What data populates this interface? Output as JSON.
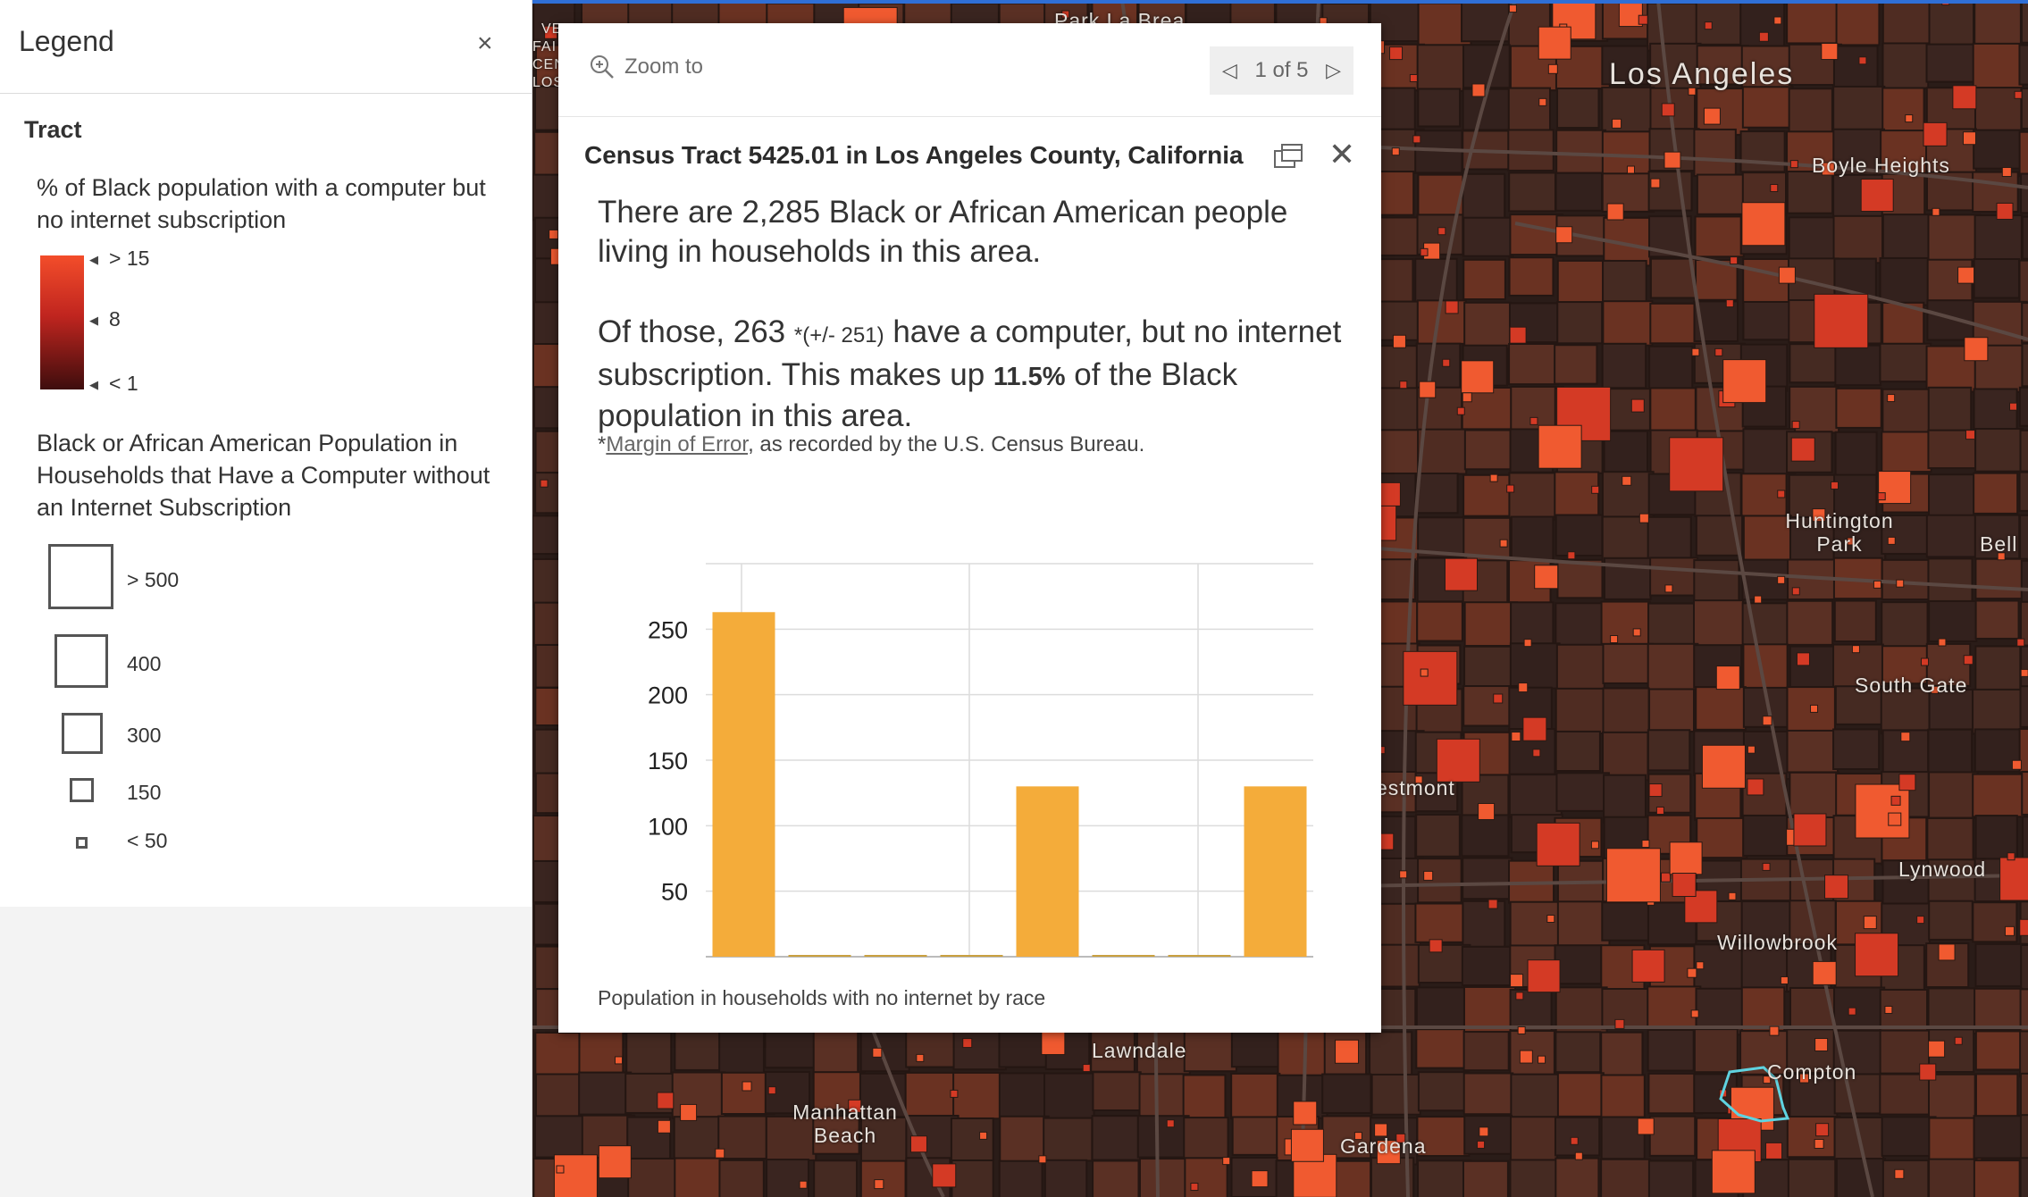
{
  "legend": {
    "title": "Legend",
    "close": "×",
    "layer_title": "Tract",
    "color_heading": "% of Black population with a computer but no internet subscription",
    "color_ramp": {
      "top": "#f34d2a",
      "mid": "#c0251f",
      "bottom": "#3e0d0d"
    },
    "color_ticks": [
      "> 15",
      "8",
      "< 1"
    ],
    "size_heading": "Black or African American Population in Households that Have a Computer without an Internet Subscription",
    "size_labels": [
      "> 500",
      "400",
      "300",
      "150",
      "< 50"
    ]
  },
  "map": {
    "labels": [
      "Park La Brea",
      "Los Angeles",
      "Boyle Heights",
      "Huntington Park",
      "Bell",
      "South Gate",
      "estmont",
      "Lynwood",
      "Willowbrook",
      "Compton",
      "Lawndale",
      "Manhattan Beach",
      "Gardena",
      "VE",
      "FAI",
      "CEN",
      "LOS"
    ],
    "colors": {
      "base": "#2a1c18",
      "tract_dark": "#3a2520",
      "tract_mid": "#4a2a22",
      "square_bright": "#f05a30",
      "square_red": "#d43a25",
      "highlight": "#5fd3e0"
    }
  },
  "popup": {
    "zoom_label": "Zoom to",
    "pager": "1 of 5",
    "prev": "◁",
    "next": "▷",
    "title": "Census Tract 5425.01 in Los Angeles County, California",
    "line1": "There are 2,285 Black or African American people living in households in this area.",
    "p2_a": "Of those, 263 ",
    "p2_moe": "*(+/- 251)",
    "p2_b": " have a computer, but no internet subscription. This makes up ",
    "p2_pct": "11.5%",
    "p2_c": " of the Black population in this area.",
    "note_star": "*",
    "note_link": "Margin of Error",
    "note_rest": ", as recorded by the U.S. Census Bureau.",
    "caption": "Population in households with no internet by race"
  },
  "chart_data": {
    "type": "bar",
    "title": "Population in households with no internet by race",
    "categories": [
      "",
      "",
      "",
      "",
      "",
      "",
      "",
      ""
    ],
    "values": [
      263,
      0,
      0,
      0,
      130,
      0,
      0,
      130
    ],
    "ylim": [
      0,
      300
    ],
    "yticks": [
      50,
      100,
      150,
      200,
      250
    ],
    "bar_color": "#f4ac3a",
    "grid": true
  }
}
